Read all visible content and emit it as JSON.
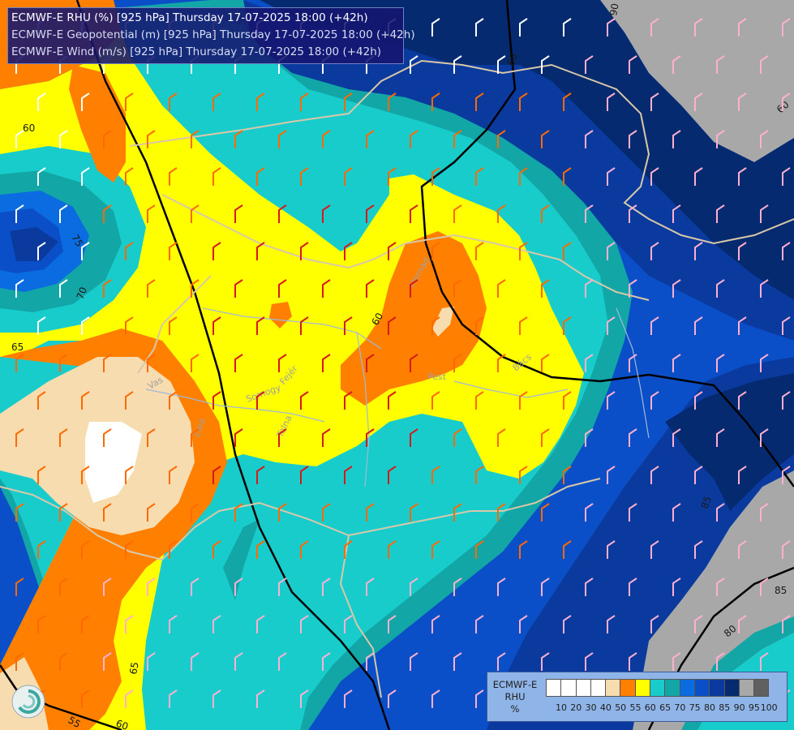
{
  "header": {
    "line1": "ECMWF-E RHU (%) [925 hPa] Thursday 17-07-2025 18:00 (+42h)",
    "line2": "ECMWF-E Geopotential (m) [925 hPa] Thursday 17-07-2025 18:00 (+42h)",
    "line3": "ECMWF-E Wind (m/s) [925 hPa] Thursday 17-07-2025 18:00 (+42h)"
  },
  "legend": {
    "title_model": "ECMWF-E",
    "title_var": "RHU",
    "title_unit": "%",
    "ticks": [
      "10",
      "20",
      "30",
      "40",
      "50",
      "55",
      "60",
      "65",
      "70",
      "75",
      "80",
      "85",
      "90",
      "95",
      "100"
    ],
    "colors": [
      "#ffffff",
      "#ffffff",
      "#ffffff",
      "#ffffff",
      "#f6dcae",
      "#ff8000",
      "#ffff00",
      "#19cccc",
      "#13a6a6",
      "#0a6ce0",
      "#0a4fc8",
      "#0a3a9e",
      "#062a70",
      "#a8a8a8",
      "#606060"
    ]
  },
  "contour_labels": [
    {
      "text": "60"
    },
    {
      "text": "60"
    },
    {
      "text": "60"
    },
    {
      "text": "60"
    },
    {
      "text": "65"
    },
    {
      "text": "65"
    },
    {
      "text": "70"
    },
    {
      "text": "75"
    },
    {
      "text": "85"
    },
    {
      "text": "85"
    },
    {
      "text": "80"
    },
    {
      "text": "90"
    },
    {
      "text": "55"
    },
    {
      "text": "60"
    }
  ],
  "place_labels": [
    "Hernád",
    "Pest",
    "Bács",
    "Tolna",
    "Somogy",
    "Fejér",
    "Zala",
    "Vas"
  ],
  "colors": {
    "rhu_60": "#ffff00",
    "rhu_55": "#ff8000",
    "rhu_50": "#f6dcae",
    "rhu_65": "#19cccc",
    "rhu_70": "#13a6a6",
    "rhu_75": "#0a6ce0",
    "rhu_80": "#0a4fc8",
    "rhu_85": "#0a3a9e",
    "rhu_90": "#062a70",
    "rhu_95": "#a8a8a8",
    "border": "#d8c8a8",
    "geopotential": "#000000"
  }
}
